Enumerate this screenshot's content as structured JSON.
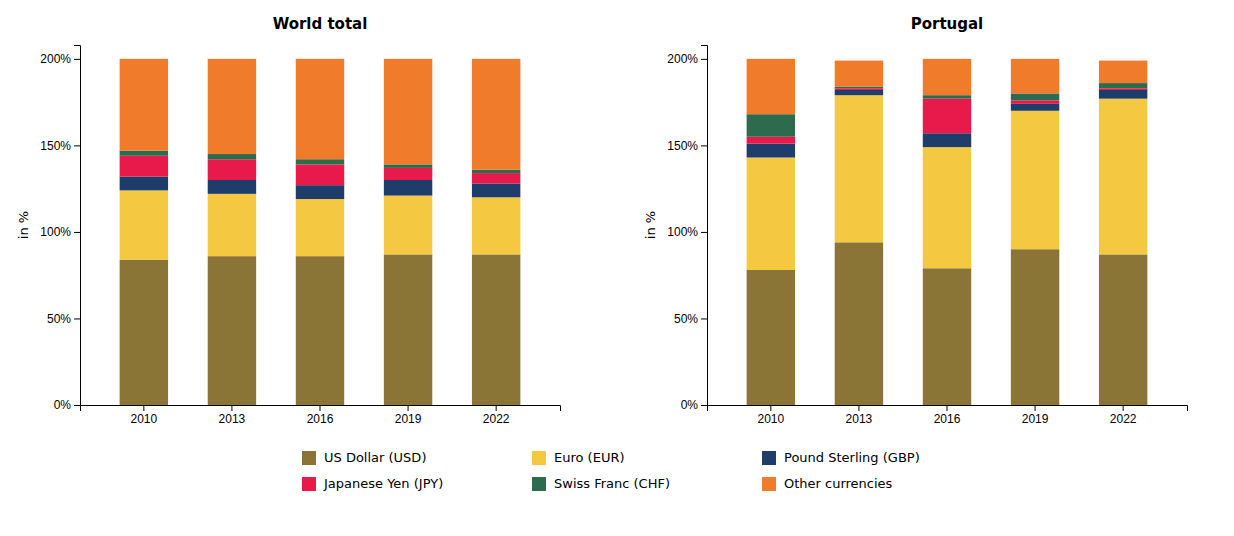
{
  "chart_data": [
    {
      "type": "bar",
      "title": "World total",
      "ylabel": "in %",
      "categories": [
        "2010",
        "2013",
        "2016",
        "2019",
        "2022"
      ],
      "stacked": true,
      "grid": false,
      "legend": "bottom",
      "ylim": [
        0,
        208
      ],
      "yticks": [
        {
          "value": 0,
          "label": "0%"
        },
        {
          "value": 50,
          "label": "50%"
        },
        {
          "value": 100,
          "label": "100%"
        },
        {
          "value": 150,
          "label": "150%"
        },
        {
          "value": 200,
          "label": "200%"
        }
      ],
      "series": [
        {
          "name": "US Dollar (USD)",
          "color": "#8B7536",
          "values": [
            84,
            86,
            86,
            87,
            87
          ]
        },
        {
          "name": "Euro (EUR)",
          "color": "#F5C842",
          "values": [
            40,
            36,
            33,
            34,
            33
          ]
        },
        {
          "name": "Pound Sterling (GBP)",
          "color": "#1F3D6B",
          "values": [
            8,
            8,
            8,
            9,
            8
          ]
        },
        {
          "name": "Japanese Yen (JPY)",
          "color": "#E8194B",
          "values": [
            12,
            12,
            12,
            7,
            6
          ]
        },
        {
          "name": "Swiss Franc (CHF)",
          "color": "#2D6B4F",
          "values": [
            3,
            3,
            3,
            2,
            2
          ]
        },
        {
          "name": "Other currencies",
          "color": "#F07B2A",
          "values": [
            53,
            55,
            58,
            61,
            64
          ]
        }
      ]
    },
    {
      "type": "bar",
      "title": "Portugal",
      "ylabel": "in %",
      "categories": [
        "2010",
        "2013",
        "2016",
        "2019",
        "2022"
      ],
      "stacked": true,
      "grid": false,
      "ylim": [
        0,
        208
      ],
      "yticks": [
        {
          "value": 0,
          "label": "0%"
        },
        {
          "value": 50,
          "label": "50%"
        },
        {
          "value": 100,
          "label": "100%"
        },
        {
          "value": 150,
          "label": "150%"
        },
        {
          "value": 200,
          "label": "200%"
        }
      ],
      "series": [
        {
          "color": "#8B7536",
          "values": [
            78,
            94,
            79,
            90,
            87
          ]
        },
        {
          "color": "#F5C842",
          "values": [
            65,
            85,
            70,
            80,
            90
          ]
        },
        {
          "color": "#1F3D6B",
          "values": [
            8,
            3,
            8,
            4,
            5
          ]
        },
        {
          "color": "#E8194B",
          "values": [
            4,
            1,
            20,
            2,
            1
          ]
        },
        {
          "color": "#2D6B4F",
          "values": [
            13,
            1,
            2,
            4,
            3
          ]
        },
        {
          "color": "#F07B2A",
          "values": [
            32,
            15,
            21,
            20,
            13
          ]
        }
      ]
    }
  ]
}
